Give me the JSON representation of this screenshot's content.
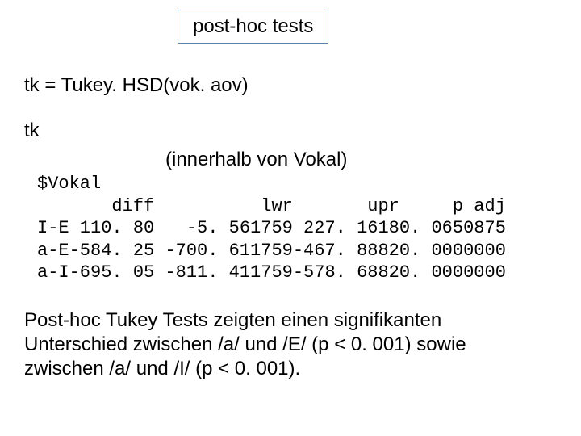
{
  "title": "post-hoc tests",
  "code_line": "tk = Tukey. HSD(vok. aov)",
  "tk_line": "tk",
  "inner_label": "(innerhalb von Vokal)",
  "factor_name": "$Vokal",
  "table": {
    "columns": [
      "",
      "diff",
      "lwr",
      "upr",
      "p adj"
    ],
    "rows": [
      [
        "I-E",
        "110. 80",
        "-5. 561759",
        "227. 1618",
        "0. 0650875"
      ],
      [
        "a-E",
        "-584. 25",
        "-700. 611759",
        "-467. 8882",
        "0. 0000000"
      ],
      [
        "a-I",
        "-695. 05",
        "-811. 411759",
        "-578. 6882",
        "0. 0000000"
      ]
    ]
  },
  "paragraph": "Post-hoc Tukey Tests zeigten einen signifikanten Unterschied zwischen /a/ und /E/ (p < 0. 001) sowie zwischen /a/ und /I/ (p < 0. 001).",
  "colors": {
    "background": "#ffffff",
    "text": "#000000",
    "box_border": "#6080b0"
  }
}
